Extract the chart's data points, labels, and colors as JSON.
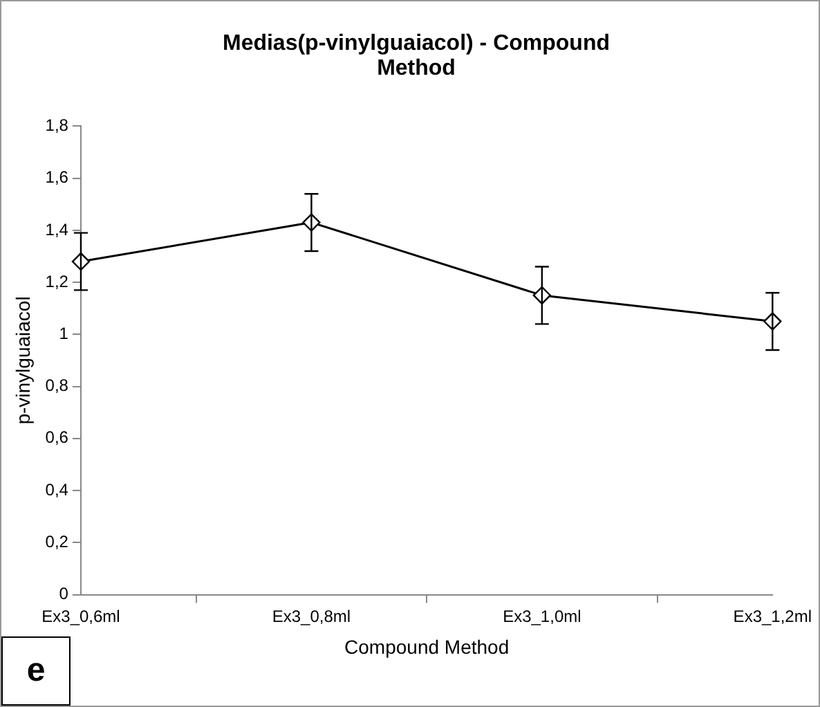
{
  "chart_data": {
    "type": "line",
    "title": "Medias(p-vinylguaiacol) - Compound Method",
    "xlabel": "Compound Method",
    "ylabel": "p-vinylguaiacol",
    "categories": [
      "Ex3_0,6ml",
      "Ex3_0,8ml",
      "Ex3_1,0ml",
      "Ex3_1,2ml"
    ],
    "values": [
      1.28,
      1.43,
      1.15,
      1.05
    ],
    "color": "#000000",
    "errors": [
      0.11,
      0.11,
      0.11,
      0.11
    ],
    "ylim": [
      0,
      1.8
    ],
    "yticks": [
      0,
      {
        "value": 0.2,
        "label": "0,2"
      },
      {
        "value": 0.4,
        "label": "0,4"
      },
      {
        "value": 0.6,
        "label": "0,6"
      },
      {
        "value": 0.8,
        "label": "0,8"
      },
      1,
      {
        "value": 1.2,
        "label": "1,2"
      },
      {
        "value": 1.4,
        "label": "1,4"
      },
      {
        "value": 1.6,
        "label": "1,6"
      },
      {
        "value": 1.8,
        "label": "1,8"
      }
    ],
    "marker": "diamond",
    "line_style": "solid",
    "grid": false,
    "legend": false,
    "annotations": [
      "e"
    ]
  }
}
